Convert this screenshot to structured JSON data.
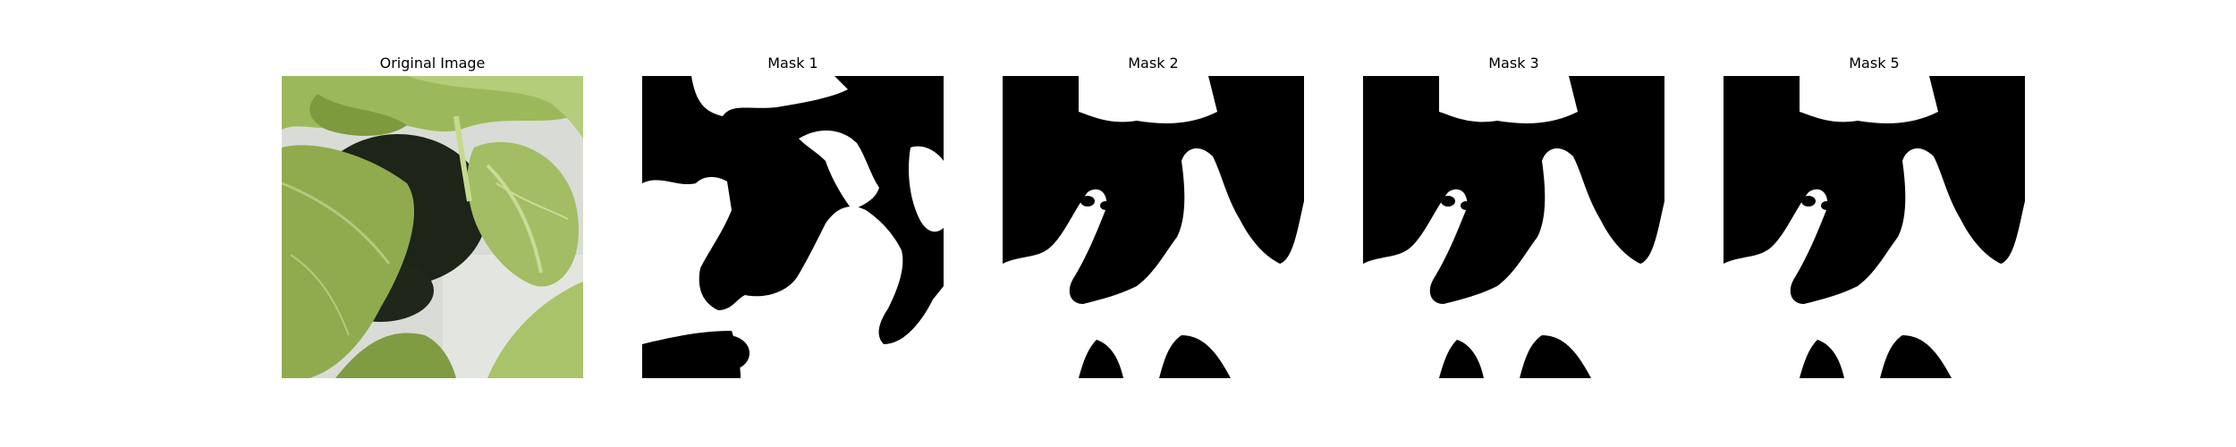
{
  "figure": {
    "panels": [
      {
        "title": "Original Image",
        "kind": "photo",
        "subject": "green leafy plant in black pot on white tray"
      },
      {
        "title": "Mask 1",
        "kind": "binary-mask"
      },
      {
        "title": "Mask 2",
        "kind": "binary-mask"
      },
      {
        "title": "Mask 3",
        "kind": "binary-mask"
      },
      {
        "title": "Mask 5",
        "kind": "binary-mask"
      }
    ]
  },
  "colors": {
    "background": "#ffffff",
    "mask_foreground": "#ffffff",
    "mask_background": "#000000",
    "leaf_light": "#a9c36a",
    "leaf_mid": "#8fab4e",
    "leaf_dark": "#5f7d2e",
    "pot": "#1d2418",
    "tray": "#d9dcd6"
  }
}
